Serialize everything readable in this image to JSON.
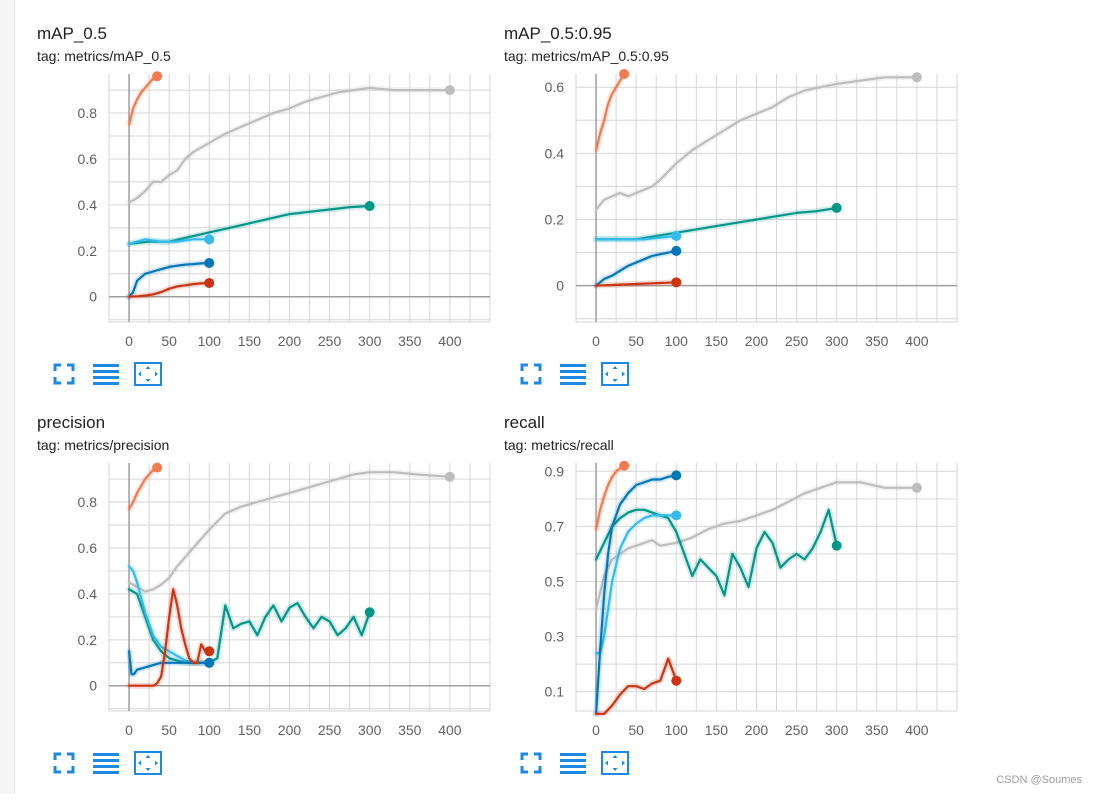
{
  "colors": {
    "grid": "#d6d6d6",
    "axis": "#9e9e9e",
    "tick_text": "#616161",
    "control_blue": "#1e88e5"
  },
  "controls": [
    {
      "icon": "fullscreen-icon"
    },
    {
      "icon": "toggle-y-log-icon"
    },
    {
      "icon": "fit-domain-icon"
    }
  ],
  "watermark": "CSDN @Soumes",
  "chart_data": [
    {
      "type": "line",
      "title": "mAP_0.5",
      "subtitle": "tag: metrics/mAP_0.5",
      "xlabel": "",
      "ylabel": "",
      "xlim": [
        -25,
        450
      ],
      "ylim": [
        -0.11,
        0.97
      ],
      "xticks": [
        0,
        50,
        100,
        150,
        200,
        250,
        300,
        350,
        400
      ],
      "yticks": [
        0,
        0.2,
        0.4,
        0.6,
        0.8
      ],
      "ytick_labels": [
        "0",
        "0.2",
        "0.4",
        "0.6",
        "0.8"
      ],
      "grid": true,
      "legend": "none",
      "series": [
        {
          "color": "#bdbdbd",
          "x": [
            0,
            10,
            20,
            30,
            40,
            50,
            60,
            70,
            80,
            100,
            120,
            140,
            160,
            180,
            200,
            220,
            240,
            260,
            280,
            300,
            330,
            360,
            400
          ],
          "y": [
            0.41,
            0.43,
            0.46,
            0.5,
            0.5,
            0.53,
            0.55,
            0.6,
            0.63,
            0.67,
            0.71,
            0.74,
            0.77,
            0.8,
            0.82,
            0.85,
            0.87,
            0.89,
            0.9,
            0.91,
            0.9,
            0.9,
            0.9
          ]
        },
        {
          "color": "#f4794e",
          "x": [
            0,
            5,
            10,
            15,
            20,
            25,
            30,
            35
          ],
          "y": [
            0.75,
            0.82,
            0.86,
            0.89,
            0.91,
            0.93,
            0.95,
            0.96
          ]
        },
        {
          "color": "#009688",
          "x": [
            0,
            25,
            50,
            75,
            100,
            125,
            150,
            175,
            200,
            225,
            250,
            275,
            300
          ],
          "y": [
            0.23,
            0.24,
            0.24,
            0.26,
            0.28,
            0.3,
            0.32,
            0.34,
            0.36,
            0.37,
            0.38,
            0.39,
            0.395
          ]
        },
        {
          "color": "#33bbee",
          "x": [
            0,
            20,
            40,
            60,
            80,
            100
          ],
          "y": [
            0.23,
            0.25,
            0.24,
            0.24,
            0.25,
            0.25
          ]
        },
        {
          "color": "#0077bb",
          "x": [
            0,
            5,
            10,
            20,
            30,
            40,
            50,
            60,
            70,
            80,
            90,
            100
          ],
          "y": [
            0,
            0.02,
            0.07,
            0.1,
            0.11,
            0.12,
            0.13,
            0.135,
            0.14,
            0.142,
            0.145,
            0.147
          ]
        },
        {
          "color": "#cc3311",
          "x": [
            0,
            10,
            20,
            30,
            40,
            50,
            60,
            70,
            80,
            90,
            100
          ],
          "y": [
            0,
            0.002,
            0.005,
            0.01,
            0.02,
            0.035,
            0.045,
            0.05,
            0.055,
            0.058,
            0.06
          ]
        }
      ]
    },
    {
      "type": "line",
      "title": "mAP_0.5:0.95",
      "subtitle": "tag: metrics/mAP_0.5:0.95",
      "xlabel": "",
      "ylabel": "",
      "xlim": [
        -25,
        450
      ],
      "ylim": [
        -0.11,
        0.64
      ],
      "xticks": [
        0,
        50,
        100,
        150,
        200,
        250,
        300,
        350,
        400
      ],
      "yticks": [
        0,
        0.2,
        0.4,
        0.6
      ],
      "ytick_labels": [
        "0",
        "0.2",
        "0.4",
        "0.6"
      ],
      "grid": true,
      "legend": "none",
      "series": [
        {
          "color": "#bdbdbd",
          "x": [
            0,
            10,
            20,
            30,
            40,
            50,
            60,
            70,
            80,
            100,
            120,
            140,
            160,
            180,
            200,
            220,
            240,
            260,
            280,
            300,
            330,
            360,
            400
          ],
          "y": [
            0.23,
            0.26,
            0.27,
            0.28,
            0.27,
            0.28,
            0.29,
            0.3,
            0.32,
            0.37,
            0.41,
            0.44,
            0.47,
            0.5,
            0.52,
            0.54,
            0.57,
            0.59,
            0.6,
            0.61,
            0.62,
            0.63,
            0.63
          ]
        },
        {
          "color": "#f4794e",
          "x": [
            0,
            5,
            10,
            15,
            20,
            25,
            30,
            35
          ],
          "y": [
            0.41,
            0.46,
            0.5,
            0.55,
            0.58,
            0.6,
            0.62,
            0.64
          ]
        },
        {
          "color": "#009688",
          "x": [
            0,
            25,
            50,
            75,
            100,
            125,
            150,
            175,
            200,
            225,
            250,
            275,
            300
          ],
          "y": [
            0.14,
            0.14,
            0.14,
            0.15,
            0.16,
            0.17,
            0.18,
            0.19,
            0.2,
            0.21,
            0.22,
            0.225,
            0.235
          ]
        },
        {
          "color": "#33bbee",
          "x": [
            0,
            20,
            40,
            60,
            80,
            100
          ],
          "y": [
            0.14,
            0.14,
            0.14,
            0.14,
            0.145,
            0.15
          ]
        },
        {
          "color": "#0077bb",
          "x": [
            0,
            5,
            10,
            20,
            30,
            40,
            50,
            60,
            70,
            80,
            90,
            100
          ],
          "y": [
            0,
            0.01,
            0.02,
            0.03,
            0.045,
            0.06,
            0.07,
            0.08,
            0.09,
            0.095,
            0.1,
            0.105
          ]
        },
        {
          "color": "#cc3311",
          "x": [
            0,
            10,
            20,
            30,
            40,
            50,
            60,
            70,
            80,
            90,
            100
          ],
          "y": [
            0,
            0.001,
            0.002,
            0.003,
            0.004,
            0.005,
            0.006,
            0.007,
            0.008,
            0.009,
            0.01
          ]
        }
      ]
    },
    {
      "type": "line",
      "title": "precision",
      "subtitle": "tag: metrics/precision",
      "xlabel": "",
      "ylabel": "",
      "xlim": [
        -25,
        450
      ],
      "ylim": [
        -0.11,
        0.97
      ],
      "xticks": [
        0,
        50,
        100,
        150,
        200,
        250,
        300,
        350,
        400
      ],
      "yticks": [
        0,
        0.2,
        0.4,
        0.6,
        0.8
      ],
      "ytick_labels": [
        "0",
        "0.2",
        "0.4",
        "0.6",
        "0.8"
      ],
      "grid": true,
      "legend": "none",
      "series": [
        {
          "color": "#bdbdbd",
          "x": [
            0,
            10,
            20,
            30,
            40,
            50,
            60,
            70,
            80,
            100,
            120,
            140,
            160,
            180,
            200,
            220,
            240,
            260,
            280,
            300,
            330,
            360,
            400
          ],
          "y": [
            0.45,
            0.43,
            0.41,
            0.42,
            0.44,
            0.47,
            0.52,
            0.56,
            0.6,
            0.68,
            0.75,
            0.78,
            0.8,
            0.82,
            0.84,
            0.86,
            0.88,
            0.9,
            0.92,
            0.93,
            0.93,
            0.92,
            0.91
          ]
        },
        {
          "color": "#f4794e",
          "x": [
            0,
            5,
            10,
            15,
            20,
            25,
            30,
            35
          ],
          "y": [
            0.77,
            0.8,
            0.84,
            0.87,
            0.9,
            0.92,
            0.94,
            0.95
          ]
        },
        {
          "color": "#009688",
          "x": [
            0,
            10,
            20,
            30,
            40,
            50,
            60,
            70,
            80,
            90,
            100,
            110,
            120,
            130,
            140,
            150,
            160,
            170,
            180,
            190,
            200,
            210,
            220,
            230,
            240,
            250,
            260,
            270,
            280,
            290,
            300
          ],
          "y": [
            0.42,
            0.4,
            0.3,
            0.2,
            0.15,
            0.12,
            0.11,
            0.1,
            0.1,
            0.1,
            0.1,
            0.12,
            0.35,
            0.25,
            0.27,
            0.28,
            0.22,
            0.3,
            0.35,
            0.28,
            0.34,
            0.36,
            0.3,
            0.25,
            0.3,
            0.28,
            0.22,
            0.25,
            0.3,
            0.22,
            0.32
          ]
        },
        {
          "color": "#33bbee",
          "x": [
            0,
            5,
            10,
            20,
            30,
            40,
            50,
            60,
            70,
            80,
            90,
            100
          ],
          "y": [
            0.52,
            0.5,
            0.45,
            0.32,
            0.22,
            0.17,
            0.15,
            0.13,
            0.11,
            0.1,
            0.1,
            0.1
          ]
        },
        {
          "color": "#0077bb",
          "x": [
            0,
            3,
            6,
            10,
            20,
            30,
            40,
            50,
            60,
            70,
            80,
            90,
            100
          ],
          "y": [
            0.15,
            0.05,
            0.05,
            0.07,
            0.08,
            0.09,
            0.1,
            0.1,
            0.1,
            0.1,
            0.1,
            0.1,
            0.1
          ]
        },
        {
          "color": "#cc3311",
          "x": [
            0,
            10,
            20,
            30,
            35,
            40,
            45,
            50,
            55,
            60,
            65,
            70,
            75,
            80,
            85,
            90,
            95,
            100
          ],
          "y": [
            0,
            0,
            0,
            0,
            0.01,
            0.04,
            0.15,
            0.3,
            0.42,
            0.35,
            0.25,
            0.18,
            0.12,
            0.1,
            0.1,
            0.18,
            0.15,
            0.15
          ]
        }
      ]
    },
    {
      "type": "line",
      "title": "recall",
      "subtitle": "tag: metrics/recall",
      "xlabel": "",
      "ylabel": "",
      "xlim": [
        -25,
        450
      ],
      "ylim": [
        0.03,
        0.93
      ],
      "xticks": [
        0,
        50,
        100,
        150,
        200,
        250,
        300,
        350,
        400
      ],
      "yticks": [
        0.1,
        0.3,
        0.5,
        0.7,
        0.9
      ],
      "ytick_labels": [
        "0.1",
        "0.3",
        "0.5",
        "0.7",
        "0.9"
      ],
      "grid": true,
      "legend": "none",
      "series": [
        {
          "color": "#bdbdbd",
          "x": [
            0,
            10,
            20,
            30,
            40,
            50,
            60,
            70,
            80,
            100,
            120,
            140,
            160,
            180,
            200,
            220,
            240,
            260,
            280,
            300,
            330,
            360,
            400
          ],
          "y": [
            0.4,
            0.52,
            0.58,
            0.6,
            0.62,
            0.63,
            0.64,
            0.65,
            0.63,
            0.64,
            0.66,
            0.69,
            0.71,
            0.72,
            0.74,
            0.76,
            0.79,
            0.82,
            0.84,
            0.86,
            0.86,
            0.84,
            0.84
          ]
        },
        {
          "color": "#f4794e",
          "x": [
            0,
            5,
            10,
            15,
            20,
            25,
            30,
            35
          ],
          "y": [
            0.69,
            0.76,
            0.81,
            0.85,
            0.88,
            0.9,
            0.91,
            0.92
          ]
        },
        {
          "color": "#009688",
          "x": [
            0,
            10,
            20,
            30,
            40,
            50,
            60,
            70,
            80,
            90,
            100,
            110,
            120,
            130,
            140,
            150,
            160,
            170,
            180,
            190,
            200,
            210,
            220,
            230,
            240,
            250,
            260,
            270,
            280,
            290,
            300
          ],
          "y": [
            0.58,
            0.64,
            0.7,
            0.73,
            0.75,
            0.76,
            0.76,
            0.75,
            0.74,
            0.73,
            0.68,
            0.6,
            0.52,
            0.58,
            0.55,
            0.52,
            0.45,
            0.6,
            0.55,
            0.48,
            0.62,
            0.68,
            0.64,
            0.55,
            0.58,
            0.6,
            0.58,
            0.62,
            0.68,
            0.76,
            0.63
          ]
        },
        {
          "color": "#33bbee",
          "x": [
            0,
            5,
            10,
            20,
            30,
            40,
            50,
            60,
            70,
            80,
            90,
            100
          ],
          "y": [
            0.24,
            0.24,
            0.3,
            0.5,
            0.62,
            0.68,
            0.71,
            0.73,
            0.74,
            0.74,
            0.74,
            0.74
          ]
        },
        {
          "color": "#0077bb",
          "x": [
            0,
            5,
            10,
            15,
            20,
            30,
            40,
            50,
            60,
            70,
            80,
            90,
            100
          ],
          "y": [
            0.02,
            0.25,
            0.45,
            0.6,
            0.7,
            0.78,
            0.82,
            0.85,
            0.86,
            0.87,
            0.87,
            0.88,
            0.885
          ]
        },
        {
          "color": "#cc3311",
          "x": [
            0,
            10,
            20,
            30,
            40,
            50,
            60,
            70,
            80,
            85,
            90,
            95,
            100
          ],
          "y": [
            0.02,
            0.02,
            0.05,
            0.09,
            0.12,
            0.12,
            0.11,
            0.13,
            0.14,
            0.18,
            0.22,
            0.18,
            0.14
          ]
        }
      ]
    }
  ]
}
